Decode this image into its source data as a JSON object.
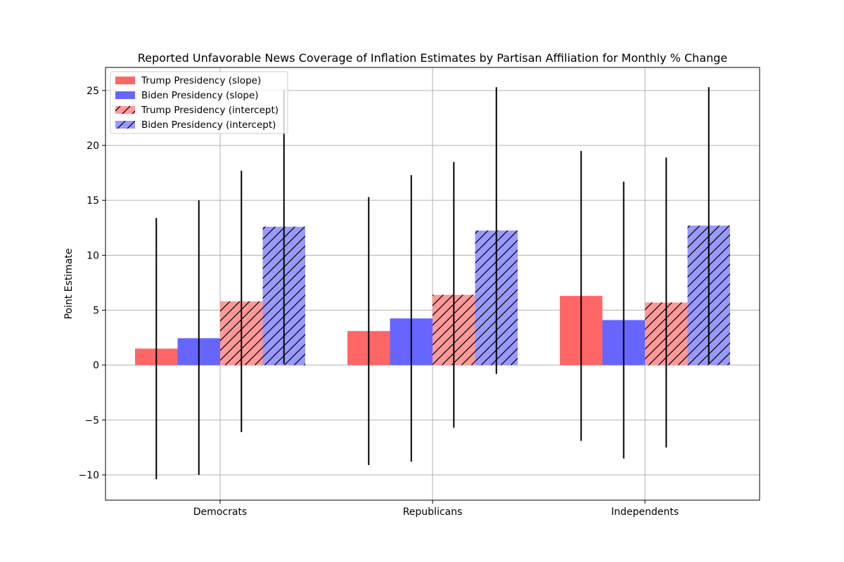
{
  "chart_data": {
    "type": "bar",
    "title": "Reported Unfavorable News Coverage of Inflation Estimates by Partisan Affiliation for Monthly % Change",
    "xlabel": "",
    "ylabel": "Point Estimate",
    "categories": [
      "Democrats",
      "Republicans",
      "Independents"
    ],
    "ylim": [
      -12.3,
      27.1
    ],
    "yticks": [
      -10,
      -5,
      0,
      5,
      10,
      15,
      20,
      25
    ],
    "ytick_labels": [
      "−10",
      "−5",
      "0",
      "5",
      "10",
      "15",
      "20",
      "25"
    ],
    "grid": true,
    "legend_position": "top-left",
    "series": [
      {
        "name": "Trump Presidency (slope)",
        "color": "#ff6666",
        "hatch": false,
        "values": [
          1.5,
          3.1,
          6.3
        ],
        "err_low": [
          -10.4,
          -9.1,
          -6.9
        ],
        "err_high": [
          13.4,
          15.3,
          19.5
        ]
      },
      {
        "name": "Biden Presidency (slope)",
        "color": "#6666ff",
        "hatch": false,
        "values": [
          2.45,
          4.25,
          4.1
        ],
        "err_low": [
          -10.0,
          -8.8,
          -8.5
        ],
        "err_high": [
          15.0,
          17.3,
          16.7
        ]
      },
      {
        "name": "Trump Presidency (intercept)",
        "color": "#ff9999",
        "hatch": true,
        "values": [
          5.8,
          6.4,
          5.7
        ],
        "err_low": [
          -6.1,
          -5.7,
          -7.5
        ],
        "err_high": [
          17.7,
          18.5,
          18.9
        ]
      },
      {
        "name": "Biden Presidency (intercept)",
        "color": "#9999ff",
        "hatch": true,
        "values": [
          12.6,
          12.25,
          12.7
        ],
        "err_low": [
          0.1,
          -0.8,
          0.1
        ],
        "err_high": [
          25.1,
          25.3,
          25.3
        ]
      }
    ]
  }
}
